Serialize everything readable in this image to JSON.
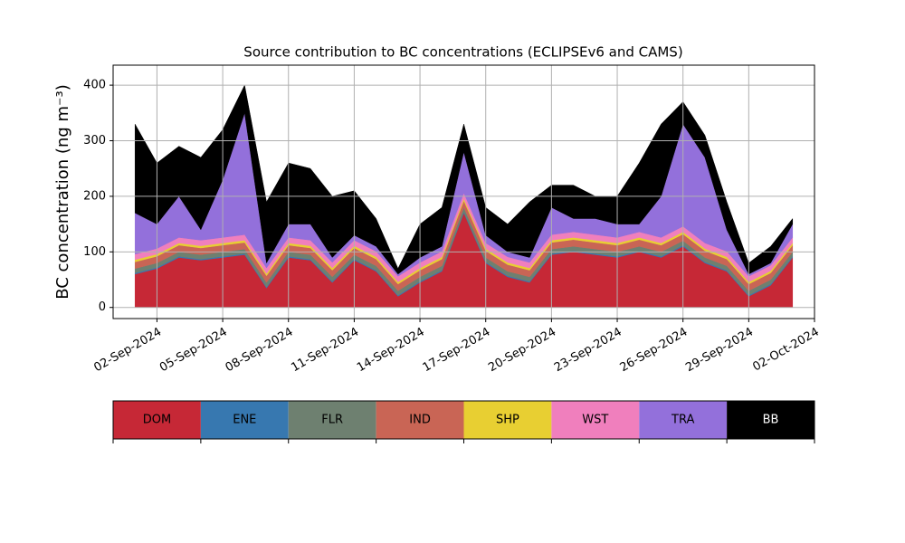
{
  "chart_data": {
    "type": "stacked_area",
    "title": "Source contribution to BC concentrations (ECLIPSEv6 and CAMS)",
    "y_label": "BC concentration (ng m⁻³)",
    "x": [
      "01-Sep-2024",
      "02-Sep-2024",
      "03-Sep-2024",
      "04-Sep-2024",
      "05-Sep-2024",
      "06-Sep-2024",
      "07-Sep-2024",
      "08-Sep-2024",
      "09-Sep-2024",
      "10-Sep-2024",
      "11-Sep-2024",
      "12-Sep-2024",
      "13-Sep-2024",
      "14-Sep-2024",
      "15-Sep-2024",
      "16-Sep-2024",
      "17-Sep-2024",
      "18-Sep-2024",
      "19-Sep-2024",
      "20-Sep-2024",
      "21-Sep-2024",
      "22-Sep-2024",
      "23-Sep-2024",
      "24-Sep-2024",
      "25-Sep-2024",
      "26-Sep-2024",
      "27-Sep-2024",
      "28-Sep-2024",
      "29-Sep-2024",
      "30-Sep-2024",
      "01-Oct-2024"
    ],
    "series": [
      {
        "name": "DOM",
        "color": "#c62836",
        "values": [
          60,
          70,
          90,
          85,
          90,
          95,
          35,
          90,
          85,
          45,
          85,
          65,
          20,
          45,
          65,
          170,
          80,
          55,
          45,
          95,
          100,
          95,
          90,
          100,
          90,
          110,
          80,
          65,
          20,
          40,
          90
        ]
      },
      {
        "name": "ENE",
        "color": "#3778b0",
        "values": [
          2,
          2,
          2,
          2,
          2,
          2,
          2,
          2,
          2,
          2,
          2,
          2,
          2,
          2,
          2,
          2,
          2,
          2,
          2,
          2,
          2,
          2,
          2,
          2,
          2,
          2,
          2,
          2,
          2,
          2,
          2
        ]
      },
      {
        "name": "FLR",
        "color": "#6e8070",
        "values": [
          8,
          8,
          8,
          8,
          8,
          8,
          8,
          8,
          8,
          8,
          8,
          8,
          8,
          8,
          8,
          8,
          8,
          8,
          8,
          8,
          8,
          8,
          8,
          8,
          8,
          8,
          8,
          8,
          8,
          8,
          8
        ]
      },
      {
        "name": "IND",
        "color": "#c96555",
        "values": [
          12,
          12,
          12,
          12,
          12,
          12,
          12,
          12,
          12,
          12,
          12,
          12,
          12,
          12,
          12,
          12,
          12,
          12,
          12,
          12,
          12,
          12,
          12,
          12,
          12,
          12,
          12,
          12,
          12,
          12,
          12
        ]
      },
      {
        "name": "SHP",
        "color": "#e8cf32",
        "values": [
          4,
          4,
          4,
          4,
          4,
          4,
          4,
          4,
          4,
          4,
          4,
          4,
          4,
          4,
          4,
          4,
          4,
          4,
          4,
          4,
          4,
          4,
          4,
          4,
          4,
          4,
          4,
          4,
          4,
          4,
          4
        ]
      },
      {
        "name": "WST",
        "color": "#f07fbd",
        "values": [
          10,
          10,
          10,
          10,
          10,
          10,
          10,
          10,
          10,
          10,
          10,
          10,
          10,
          10,
          10,
          10,
          10,
          10,
          10,
          10,
          10,
          10,
          10,
          10,
          10,
          10,
          10,
          10,
          10,
          10,
          10
        ]
      },
      {
        "name": "TRA",
        "color": "#9370db",
        "values": [
          74,
          44,
          74,
          19,
          104,
          219,
          9,
          24,
          29,
          9,
          9,
          9,
          4,
          9,
          9,
          74,
          14,
          9,
          9,
          49,
          24,
          29,
          24,
          14,
          74,
          184,
          154,
          39,
          4,
          4,
          24
        ]
      },
      {
        "name": "BB",
        "color": "#000000",
        "values": [
          160,
          110,
          90,
          130,
          90,
          50,
          110,
          110,
          100,
          110,
          80,
          50,
          10,
          60,
          70,
          50,
          50,
          50,
          100,
          40,
          60,
          40,
          50,
          110,
          130,
          40,
          40,
          50,
          20,
          30,
          10
        ]
      }
    ],
    "xlim": [
      "31-Aug-2024",
      "02-Oct-2024"
    ],
    "xticks": [
      "02-Sep-2024",
      "05-Sep-2024",
      "08-Sep-2024",
      "11-Sep-2024",
      "14-Sep-2024",
      "17-Sep-2024",
      "20-Sep-2024",
      "23-Sep-2024",
      "26-Sep-2024",
      "29-Sep-2024",
      "02-Oct-2024"
    ],
    "ylim": [
      -20,
      436
    ],
    "yticks": [
      0,
      100,
      200,
      300,
      400
    ],
    "grid": true
  }
}
